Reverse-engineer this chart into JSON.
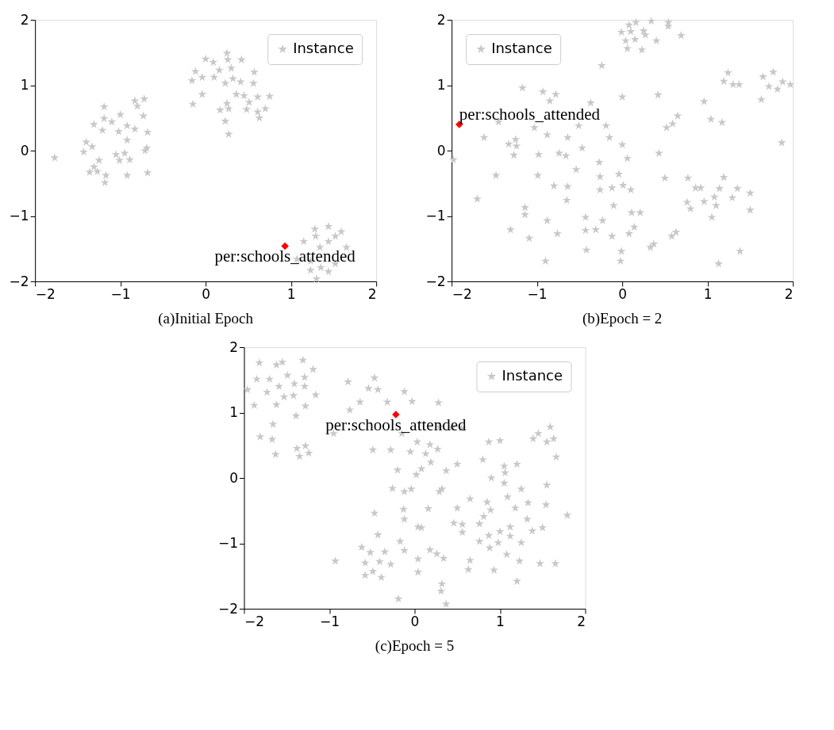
{
  "chart_data": [
    {
      "type": "scatter",
      "title": "(a)Initial Epoch",
      "xlim": [
        -2,
        2
      ],
      "ylim": [
        -2,
        2
      ],
      "xticks": [
        -2,
        -1,
        0,
        1,
        2
      ],
      "yticks": [
        -2,
        -1,
        0,
        1,
        2
      ],
      "grid": false,
      "legend": "top right",
      "series": [
        {
          "name": "Instance",
          "color": "#c8c8c8",
          "marker": "star",
          "x": [
            -1.77,
            -1.19,
            -0.83,
            -0.72,
            -0.8,
            -1.0,
            -1.19,
            -1.31,
            -1.1,
            -0.73,
            -0.92,
            -0.83,
            -0.68,
            -1.02,
            -1.21,
            -0.92,
            -1.4,
            -1.33,
            -1.43,
            -1.05,
            -1.01,
            -0.95,
            -0.89,
            -0.71,
            -0.69,
            -1.25,
            -1.31,
            -1.36,
            -1.27,
            -1.17,
            -1.18,
            -0.92,
            -0.68,
            0.0,
            0.09,
            0.25,
            0.26,
            0.42,
            -0.12,
            0.16,
            0.3,
            0.57,
            -0.16,
            -0.04,
            0.1,
            0.23,
            0.32,
            0.41,
            0.56,
            -0.04,
            0.36,
            0.45,
            0.61,
            0.75,
            -0.15,
            0.25,
            0.51,
            0.17,
            0.27,
            0.48,
            0.7,
            0.61,
            0.63,
            0.23,
            0.27,
            1.28,
            1.44,
            1.59,
            1.29,
            1.52,
            1.15,
            1.44,
            1.34,
            1.65,
            1.07,
            1.23,
            1.52,
            1.35,
            1.23,
            1.44,
            1.3
          ],
          "values": [
            -0.11,
            0.67,
            0.76,
            0.79,
            0.68,
            0.55,
            0.49,
            0.4,
            0.44,
            0.53,
            0.38,
            0.33,
            0.28,
            0.29,
            0.31,
            0.16,
            0.13,
            0.06,
            -0.02,
            -0.06,
            -0.15,
            -0.04,
            -0.14,
            0.0,
            0.04,
            -0.15,
            -0.25,
            -0.33,
            -0.32,
            -0.38,
            -0.49,
            -0.38,
            -0.34,
            1.4,
            1.35,
            1.49,
            1.39,
            1.39,
            1.21,
            1.23,
            1.26,
            1.2,
            1.07,
            1.12,
            1.12,
            1.03,
            1.1,
            1.05,
            1.03,
            0.86,
            0.86,
            0.84,
            0.82,
            0.83,
            0.71,
            0.72,
            0.74,
            0.62,
            0.64,
            0.63,
            0.64,
            0.59,
            0.5,
            0.45,
            0.25,
            -1.2,
            -1.16,
            -1.24,
            -1.31,
            -1.31,
            -1.39,
            -1.39,
            -1.48,
            -1.48,
            -1.66,
            -1.69,
            -1.73,
            -1.79,
            -1.83,
            -1.85,
            -1.96
          ]
        },
        {
          "color": "#ff0000",
          "marker": "diamond",
          "x": [
            0.93
          ],
          "values": [
            -1.46
          ]
        }
      ],
      "annotations": [
        {
          "text": "per:schools_attended",
          "x": 0.93,
          "y": -1.46
        }
      ]
    },
    {
      "type": "scatter",
      "title": "(b)Epoch = 2",
      "xlim": [
        -2,
        2
      ],
      "ylim": [
        -2,
        2
      ],
      "xticks": [
        -2,
        -1,
        0,
        1,
        2
      ],
      "yticks": [
        -2,
        -1,
        0,
        1,
        2
      ],
      "grid": false,
      "legend": "top left",
      "series": [
        {
          "name": "Instance",
          "color": "#c8c8c8",
          "marker": "star",
          "x": [
            -1.98,
            -1.62,
            -1.7,
            -1.48,
            -1.17,
            -1.33,
            -1.25,
            -1.24,
            -1.27,
            -1.45,
            -1.31,
            -1.14,
            -1.14,
            -1.09,
            -0.93,
            -0.78,
            -0.85,
            -1.03,
            -0.88,
            -0.98,
            -0.99,
            -0.74,
            -0.66,
            -0.64,
            -0.8,
            -0.64,
            -0.65,
            -0.88,
            -0.76,
            -0.9,
            -0.37,
            -0.51,
            -0.47,
            -0.54,
            -0.27,
            -0.26,
            -0.26,
            -0.43,
            -0.43,
            -0.31,
            -0.23,
            -0.42,
            -0.24,
            -0.19,
            -0.15,
            -0.04,
            -0.12,
            -0.1,
            -0.12,
            -0.01,
            -0.02,
            0.0,
            0.0,
            0.06,
            0.01,
            0.1,
            0.11,
            0.21,
            0.14,
            0.08,
            0.33,
            0.37,
            0.42,
            0.43,
            0.5,
            0.52,
            0.59,
            0.65,
            0.58,
            0.63,
            0.77,
            0.76,
            0.8,
            0.86,
            0.92,
            0.96,
            1.04,
            1.17,
            0.96,
            1.05,
            1.08,
            1.1,
            1.14,
            1.19,
            1.29,
            1.35,
            1.5,
            1.5,
            1.38,
            1.13,
            1.19,
            1.24,
            1.3,
            1.37,
            1.63,
            1.65,
            1.72,
            1.77,
            1.82,
            1.88,
            1.97,
            1.87,
            0.08,
            0.16,
            0.34,
            0.54,
            -0.01,
            0.1,
            0.25,
            0.27,
            0.04,
            0.15,
            0.4,
            0.06,
            0.23,
            0.54,
            0.69
          ],
          "values": [
            -0.14,
            0.2,
            -0.74,
            -0.38,
            0.96,
            0.1,
            0.17,
            0.07,
            -0.07,
            0.44,
            -1.21,
            -0.87,
            -0.98,
            -1.34,
            0.9,
            0.86,
            0.76,
            0.35,
            0.24,
            -0.06,
            -0.38,
            -0.04,
            -0.08,
            0.2,
            -0.54,
            -0.55,
            -0.76,
            -1.07,
            -1.27,
            -1.69,
            0.73,
            0.38,
            0.04,
            -0.29,
            -0.18,
            -0.4,
            -0.6,
            -1.02,
            -1.22,
            -1.21,
            -1.07,
            -1.52,
            1.3,
            0.38,
            0.2,
            -0.36,
            -0.57,
            -0.84,
            -1.31,
            -1.54,
            -1.69,
            0.82,
            0.09,
            -0.12,
            -0.53,
            -0.6,
            -0.95,
            -0.95,
            -1.17,
            -1.27,
            -1.48,
            -1.43,
            0.85,
            -0.04,
            -0.42,
            0.35,
            0.41,
            0.53,
            -1.31,
            -1.25,
            -0.42,
            -0.79,
            -0.89,
            -0.57,
            -0.57,
            0.75,
            0.48,
            0.43,
            -0.78,
            -1.02,
            -0.71,
            -0.84,
            -0.58,
            -0.41,
            -0.72,
            -0.58,
            -0.65,
            -0.91,
            -1.54,
            -1.73,
            1.06,
            1.19,
            1.01,
            1.01,
            0.78,
            1.13,
            0.98,
            1.2,
            0.94,
            1.05,
            1.01,
            0.12,
            1.92,
            1.96,
            1.98,
            1.96,
            1.81,
            1.82,
            1.83,
            1.77,
            1.68,
            1.7,
            1.68,
            1.56,
            1.54,
            1.9,
            1.76
          ]
        },
        {
          "color": "#ff0000",
          "marker": "diamond",
          "x": [
            -1.91
          ],
          "values": [
            0.4
          ]
        }
      ],
      "annotations": [
        {
          "text": "per:schools_attended",
          "x": -1.91,
          "y": 0.4
        }
      ]
    },
    {
      "type": "scatter",
      "title": "(c)Epoch = 5",
      "xlim": [
        -2,
        2
      ],
      "ylim": [
        -2,
        2
      ],
      "xticks": [
        -2,
        -1,
        0,
        1,
        2
      ],
      "yticks": [
        -2,
        -1,
        0,
        1,
        2
      ],
      "grid": false,
      "legend": "top right",
      "series": [
        {
          "name": "Instance",
          "color": "#c8c8c8",
          "marker": "star",
          "x": [
            -1.96,
            -1.82,
            -1.62,
            -1.55,
            -1.31,
            -1.19,
            -1.85,
            -1.7,
            -1.49,
            -1.59,
            -1.41,
            -1.29,
            -1.29,
            -1.73,
            -1.53,
            -1.42,
            -1.16,
            -1.88,
            -1.62,
            -1.28,
            -1.39,
            -1.66,
            -1.81,
            -1.67,
            -1.63,
            -1.38,
            -1.28,
            -1.35,
            -1.24,
            -0.78,
            -0.47,
            -0.54,
            -0.43,
            -0.64,
            -0.76,
            -0.32,
            -0.12,
            -0.03,
            0.28,
            -0.95,
            -0.15,
            0.29,
            0.44,
            0.55,
            -0.49,
            -0.28,
            0.03,
            0.18,
            0.27,
            -0.05,
            0.13,
            0.19,
            -0.2,
            0.08,
            0.02,
            0.37,
            0.5,
            -0.26,
            -0.12,
            -0.04,
            0.29,
            0.32,
            -0.47,
            -0.13,
            -0.12,
            0.16,
            0.04,
            0.08,
            0.5,
            0.46,
            0.56,
            0.56,
            -0.43,
            -0.17,
            -0.12,
            0.18,
            0.26,
            0.34,
            0.04,
            0.04,
            0.65,
            0.63,
            0.32,
            0.31,
            0.37,
            -0.19,
            -0.93,
            -0.62,
            -0.52,
            -0.35,
            -0.58,
            -0.41,
            -0.28,
            -0.49,
            -0.58,
            -0.39,
            0.87,
            1.0,
            0.8,
            0.9,
            1.05,
            1.06,
            1.2,
            1.05,
            1.09,
            1.25,
            0.65,
            0.85,
            0.89,
            1.18,
            1.33,
            1.54,
            1.55,
            0.81,
            0.76,
            1.32,
            1.79,
            0.87,
            1.0,
            1.12,
            1.12,
            1.38,
            1.5,
            0.76,
            0.88,
            0.98,
            1.25,
            1.08,
            1.23,
            1.47,
            1.65,
            0.93,
            1.2,
            1.39,
            1.45,
            1.59,
            1.55,
            1.63,
            1.66
          ],
          "values": [
            1.35,
            1.76,
            1.73,
            1.77,
            1.8,
            1.66,
            1.51,
            1.51,
            1.57,
            1.4,
            1.44,
            1.54,
            1.4,
            1.31,
            1.24,
            1.26,
            1.27,
            1.11,
            1.12,
            1.1,
            0.95,
            0.82,
            0.63,
            0.59,
            0.36,
            0.45,
            0.49,
            0.33,
            0.38,
            1.47,
            1.53,
            1.37,
            1.35,
            1.16,
            1.04,
            1.16,
            1.32,
            1.17,
            1.15,
            0.68,
            0.68,
            0.78,
            0.77,
            0.76,
            0.43,
            0.43,
            0.55,
            0.51,
            0.44,
            0.4,
            0.37,
            0.24,
            0.12,
            0.14,
            0.05,
            0.11,
            0.21,
            -0.16,
            -0.21,
            -0.17,
            -0.21,
            -0.17,
            -0.54,
            -0.48,
            -0.63,
            -0.47,
            -0.75,
            -0.76,
            -0.46,
            -0.69,
            -0.71,
            -0.83,
            -0.87,
            -0.97,
            -1.11,
            -1.1,
            -1.16,
            -1.23,
            -1.24,
            -1.44,
            -1.26,
            -1.4,
            -1.62,
            -1.73,
            -1.93,
            -1.85,
            -1.27,
            -1.06,
            -1.14,
            -1.13,
            -1.3,
            -1.28,
            -1.32,
            -1.43,
            -1.49,
            -1.52,
            0.55,
            0.57,
            0.28,
            0.0,
            0.18,
            0.08,
            0.21,
            -0.08,
            -0.29,
            -0.17,
            -0.32,
            -0.37,
            -0.49,
            -0.46,
            -0.38,
            -0.41,
            -0.11,
            -0.59,
            -0.7,
            -0.63,
            -0.57,
            -0.88,
            -0.82,
            -0.75,
            -0.89,
            -0.81,
            -0.76,
            -0.97,
            -1.07,
            -0.99,
            -0.99,
            -1.17,
            -1.27,
            -1.31,
            -1.31,
            -1.41,
            -1.58,
            0.6,
            0.68,
            0.78,
            0.55,
            0.6,
            0.32
          ]
        },
        {
          "color": "#ff0000",
          "marker": "diamond",
          "x": [
            -0.22
          ],
          "values": [
            0.97
          ]
        }
      ],
      "annotations": [
        {
          "text": "per:schools_attended",
          "x": -0.22,
          "y": 0.97
        }
      ]
    }
  ]
}
